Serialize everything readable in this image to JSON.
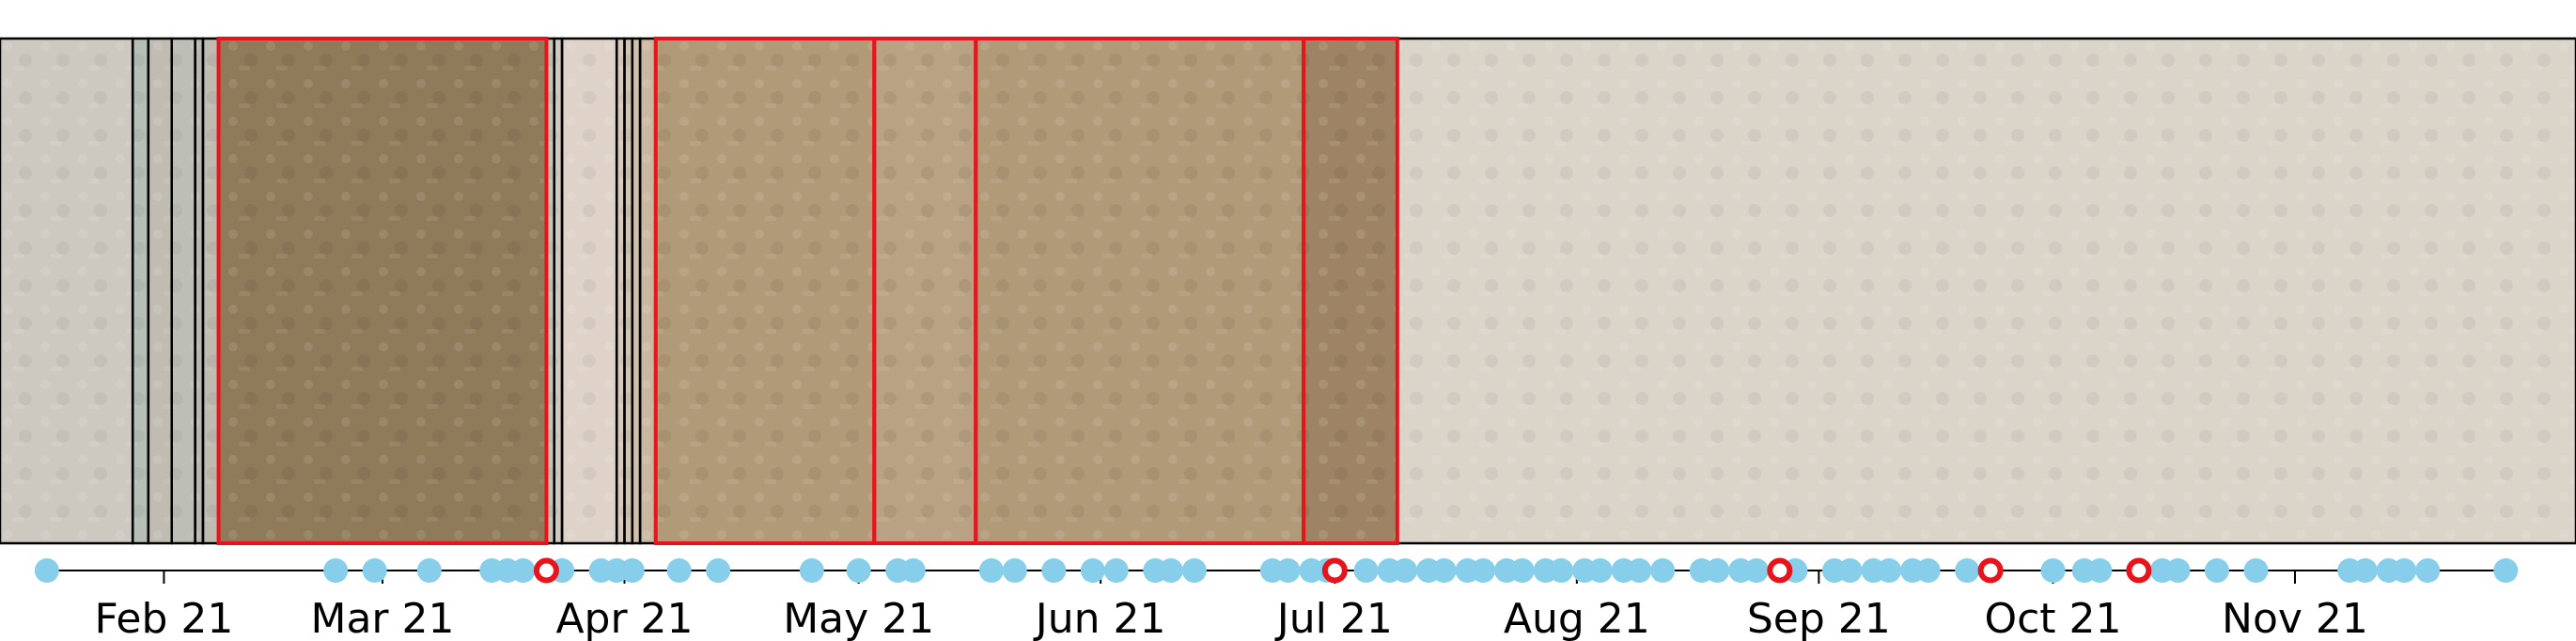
{
  "chart_data": {
    "type": "scatter",
    "title": "",
    "xlabel": "",
    "ylabel": "",
    "x_axis_type": "date",
    "xlim": [
      "2021-01-11",
      "2021-12-07"
    ],
    "x_ticks": [
      {
        "label": "Feb 21",
        "date": "2021-02-01"
      },
      {
        "label": "Mar 21",
        "date": "2021-03-01"
      },
      {
        "label": "Apr 21",
        "date": "2021-04-01"
      },
      {
        "label": "May 21",
        "date": "2021-05-01"
      },
      {
        "label": "Jun 21",
        "date": "2021-06-01"
      },
      {
        "label": "Jul 21",
        "date": "2021-07-01"
      },
      {
        "label": "Aug 21",
        "date": "2021-08-01"
      },
      {
        "label": "Sep 21",
        "date": "2021-09-01"
      },
      {
        "label": "Oct 21",
        "date": "2021-10-01"
      },
      {
        "label": "Nov 21",
        "date": "2021-11-01"
      }
    ],
    "grid": false,
    "legend": "none",
    "colors": {
      "acquisition": "#87ceeb",
      "selected": "#e8141c",
      "frame_border": "#000000",
      "selected_border": "#e8141c"
    },
    "series": [
      {
        "marker": "filled-circle",
        "color": "#87ceeb",
        "x": [
          "2021-01-17",
          "2021-02-23",
          "2021-02-28",
          "2021-03-07",
          "2021-03-15",
          "2021-03-17",
          "2021-03-19",
          "2021-03-24",
          "2021-03-29",
          "2021-03-31",
          "2021-04-02",
          "2021-04-08",
          "2021-04-13",
          "2021-04-25",
          "2021-05-01",
          "2021-05-06",
          "2021-05-08",
          "2021-05-18",
          "2021-05-21",
          "2021-05-26",
          "2021-05-31",
          "2021-06-03",
          "2021-06-08",
          "2021-06-10",
          "2021-06-13",
          "2021-06-23",
          "2021-06-25",
          "2021-06-28",
          "2021-06-30",
          "2021-07-05",
          "2021-07-08",
          "2021-07-10",
          "2021-07-13",
          "2021-07-15",
          "2021-07-18",
          "2021-07-20",
          "2021-07-23",
          "2021-07-25",
          "2021-07-28",
          "2021-07-30",
          "2021-08-02",
          "2021-08-04",
          "2021-08-07",
          "2021-08-09",
          "2021-08-12",
          "2021-08-17",
          "2021-08-19",
          "2021-08-22",
          "2021-08-24",
          "2021-08-29",
          "2021-09-03",
          "2021-09-05",
          "2021-09-08",
          "2021-09-10",
          "2021-09-13",
          "2021-09-15",
          "2021-09-20",
          "2021-10-01",
          "2021-10-05",
          "2021-10-07",
          "2021-10-15",
          "2021-10-17",
          "2021-10-22",
          "2021-10-27",
          "2021-11-08",
          "2021-11-10",
          "2021-11-13",
          "2021-11-15",
          "2021-11-18",
          "2021-11-28"
        ]
      },
      {
        "marker": "hollow-circle",
        "color": "#e8141c",
        "x": [
          "2021-03-22",
          "2021-07-01",
          "2021-08-27",
          "2021-09-23",
          "2021-10-12"
        ]
      }
    ],
    "image_strip": {
      "frames": [
        {
          "from": "2021-01-11",
          "to": "2021-01-28",
          "selected": false,
          "tint": "#c3bdb3",
          "dim": true
        },
        {
          "from": "2021-01-28",
          "to": "2021-01-30",
          "selected": false,
          "tint": "#a7b0a5",
          "dim": true
        },
        {
          "from": "2021-01-30",
          "to": "2021-02-02",
          "selected": false,
          "tint": "#b2aea2",
          "dim": true
        },
        {
          "from": "2021-02-02",
          "to": "2021-02-05",
          "selected": false,
          "tint": "#afb0a6",
          "dim": true
        },
        {
          "from": "2021-02-05",
          "to": "2021-02-06",
          "selected": false,
          "tint": "#a9a79d",
          "dim": true
        },
        {
          "from": "2021-02-06",
          "to": "2021-02-08",
          "selected": false,
          "tint": "#b0aca0",
          "dim": true
        },
        {
          "from": "2021-02-08",
          "to": "2021-03-22",
          "selected": true,
          "tint": "#8f7a5a",
          "dim": false
        },
        {
          "from": "2021-03-22",
          "to": "2021-03-23",
          "selected": false,
          "tint": "#bdb5a8",
          "dim": true
        },
        {
          "from": "2021-03-23",
          "to": "2021-03-24",
          "selected": false,
          "tint": "#c6beb3",
          "dim": true
        },
        {
          "from": "2021-03-24",
          "to": "2021-03-31",
          "selected": false,
          "tint": "#d8cabd",
          "dim": true
        },
        {
          "from": "2021-03-31",
          "to": "2021-04-01",
          "selected": false,
          "tint": "#cdbfae",
          "dim": true
        },
        {
          "from": "2021-04-01",
          "to": "2021-04-02",
          "selected": false,
          "tint": "#c9b8a1",
          "dim": true
        },
        {
          "from": "2021-04-02",
          "to": "2021-04-03",
          "selected": false,
          "tint": "#c5b296",
          "dim": true
        },
        {
          "from": "2021-04-03",
          "to": "2021-04-05",
          "selected": false,
          "tint": "#bfa88a",
          "dim": true
        },
        {
          "from": "2021-04-05",
          "to": "2021-05-03",
          "selected": true,
          "tint": "#b19a78",
          "dim": false
        },
        {
          "from": "2021-05-03",
          "to": "2021-05-16",
          "selected": true,
          "tint": "#b8a283",
          "dim": false
        },
        {
          "from": "2021-05-16",
          "to": "2021-06-27",
          "selected": true,
          "tint": "#b09a78",
          "dim": false
        },
        {
          "from": "2021-06-27",
          "to": "2021-07-09",
          "selected": true,
          "tint": "#9e8464",
          "dim": false
        },
        {
          "from": "2021-07-09",
          "to": "2021-12-07",
          "selected": false,
          "tint": "#d2cbbd",
          "dim": true
        }
      ]
    }
  }
}
